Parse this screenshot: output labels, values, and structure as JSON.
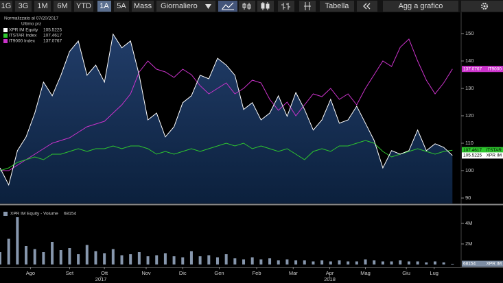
{
  "toolbar": {
    "buttons": [
      "1G",
      "3G",
      "1M",
      "6M",
      "YTD",
      "1A",
      "5A",
      "Mass"
    ],
    "period": "Giornaliero",
    "table": "Tabella",
    "add": "Agg a grafico"
  },
  "chart_data": [
    {
      "type": "line",
      "legend_title": "Normalizzato al 07/20/2017",
      "legend_subtitle": "Ultimo prz",
      "series": [
        {
          "name": "XPR IM Equity",
          "tag": "XPR IM",
          "color": "#ffffff",
          "area": true,
          "values": [
            101,
            94.8,
            107.3,
            112.3,
            121,
            132.3,
            127.3,
            134.8,
            143.5,
            147.3,
            134.8,
            138.5,
            132.3,
            149.8,
            144.8,
            147.3,
            134.8,
            118.5,
            121,
            112.3,
            116,
            124.8,
            127.3,
            134.8,
            133.5,
            141,
            138.5,
            134.8,
            122.3,
            124.8,
            118.5,
            121,
            127.3,
            119.8,
            128.5,
            122.3,
            114.8,
            118.5,
            126,
            117.3,
            118.5,
            123.5,
            117.3,
            111,
            101,
            107.3,
            106,
            107.3,
            114.8,
            107.3,
            109.8,
            108.5,
            105.5225
          ]
        },
        {
          "name": "ITSTAR Index",
          "tag": "ITSTAR",
          "color": "#2ec82e",
          "values": [
            100,
            101,
            103,
            104,
            105,
            104,
            106,
            106,
            107,
            108,
            107,
            108,
            108,
            109,
            108,
            109,
            109,
            108,
            106,
            107,
            106,
            107,
            108,
            107,
            108,
            109,
            110,
            109,
            110,
            108,
            109,
            108,
            107,
            108,
            106,
            104,
            107,
            108,
            107,
            109,
            109,
            110,
            111,
            110,
            107,
            105,
            106,
            107,
            108,
            107,
            106,
            107,
            107.4617
          ]
        },
        {
          "name": "IT9000 Index",
          "tag": "IT9000",
          "color": "#cc33cc",
          "values": [
            100,
            100,
            102,
            104,
            106,
            108,
            110,
            111,
            112,
            114,
            116,
            117,
            118,
            121,
            124,
            128,
            136,
            140,
            137,
            136,
            134,
            137,
            135,
            131,
            128,
            130,
            132,
            128,
            130,
            133,
            132,
            126,
            122,
            125,
            120,
            124,
            128,
            127,
            130,
            126,
            128,
            124,
            130,
            135,
            140,
            138,
            145,
            148,
            140,
            133,
            128,
            132,
            137.0767
          ]
        }
      ],
      "xlim": [
        0,
        53
      ],
      "ylim": [
        88,
        157.25
      ],
      "yticks": [
        90,
        100,
        110,
        120,
        130,
        140,
        150
      ]
    },
    {
      "type": "bar",
      "name": "XPR IM Equity - Volume",
      "tag": "XPR IM",
      "color": "#8797ad",
      "values": [
        1200000,
        2500000,
        4600000,
        1800000,
        1500000,
        1200000,
        2200000,
        1400000,
        1600000,
        1000000,
        1900000,
        1300000,
        1100000,
        1500000,
        900000,
        1000000,
        1200000,
        800000,
        900000,
        1100000,
        800000,
        700000,
        1300000,
        800000,
        900000,
        700000,
        1000000,
        600000,
        500000,
        700000,
        500000,
        600000,
        400000,
        500000,
        400000,
        400000,
        300000,
        400000,
        300000,
        400000,
        300000,
        300000,
        500000,
        400000,
        300000,
        300000,
        400000,
        300000,
        300000,
        200000,
        300000,
        200000,
        68154
      ],
      "xlim": [
        0,
        53
      ],
      "ylim": [
        0,
        5600000
      ],
      "yticks": [
        {
          "value": 2000000,
          "label": "2M"
        },
        {
          "value": 4000000,
          "label": "4M"
        }
      ],
      "xticks": [
        {
          "value": 3.5,
          "label": "Ago"
        },
        {
          "value": 8,
          "label": "Set"
        },
        {
          "value": 12,
          "label": "Ott"
        },
        {
          "value": 16.8,
          "label": "Nov"
        },
        {
          "value": 21,
          "label": "Dic"
        },
        {
          "value": 25.2,
          "label": "Gen"
        },
        {
          "value": 29.5,
          "label": "Feb"
        },
        {
          "value": 33.7,
          "label": "Mar"
        },
        {
          "value": 37.9,
          "label": "Apr"
        },
        {
          "value": 42,
          "label": "Mag"
        },
        {
          "value": 46.7,
          "label": "Giu"
        },
        {
          "value": 49.9,
          "label": "Lug"
        }
      ],
      "xticks_years": [
        {
          "value": 11.6,
          "label": "2017"
        },
        {
          "value": 37.9,
          "label": "2018"
        }
      ]
    }
  ]
}
